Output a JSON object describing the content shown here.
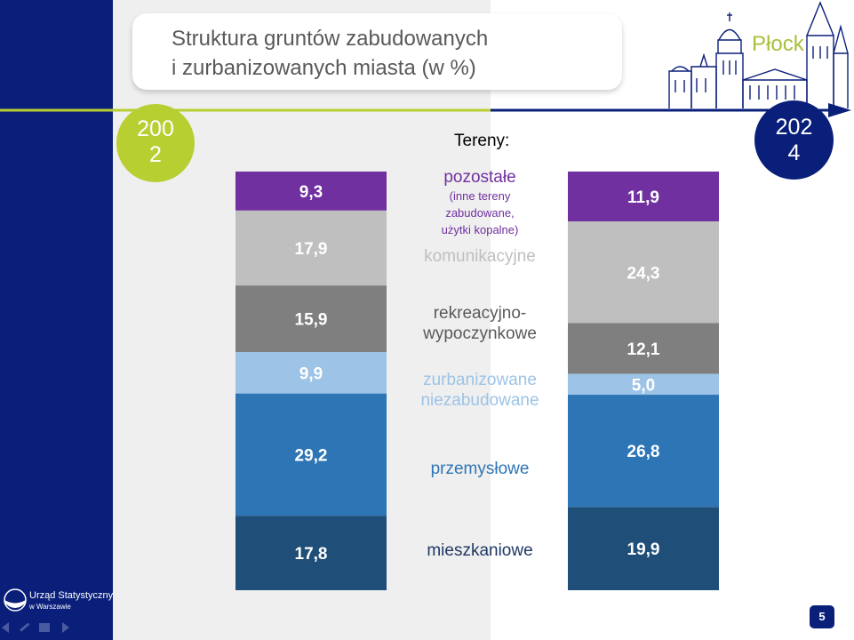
{
  "slide": {
    "title_line1": "Struktura gruntów zabudowanych",
    "title_line2": "i zurbanizowanych miasta (w %)",
    "city": "Płock",
    "year_left_a": "200",
    "year_left_b": "2",
    "year_right_a": "202",
    "year_right_b": "4",
    "legend_heading": "Tereny:",
    "page_number": "5",
    "logo_line1": "Urząd Statystyczny",
    "logo_line2": "w Warszawie"
  },
  "chart_data": {
    "type": "bar",
    "stacked": true,
    "categories": [
      "2002",
      "2024"
    ],
    "series": [
      {
        "name": "mieszkaniowe",
        "values": [
          17.8,
          19.9
        ],
        "labels": [
          "17,8",
          "19,9"
        ],
        "color": "#1f4e79",
        "label_color": "#1f3864"
      },
      {
        "name": "przemysłowe",
        "values": [
          29.2,
          26.8
        ],
        "labels": [
          "29,2",
          "26,8"
        ],
        "color": "#2e75b6",
        "label_color": "#2e75b6"
      },
      {
        "name": "zurbanizowane niezabudowane",
        "values": [
          9.9,
          5.0
        ],
        "labels": [
          "9,9",
          "5,0"
        ],
        "color": "#9dc3e6",
        "label_color": "#9dc3e6"
      },
      {
        "name": "rekreacyjno-wypoczynkowe",
        "values": [
          15.9,
          12.1
        ],
        "labels": [
          "15,9",
          "12,1"
        ],
        "color": "#7f7f7f",
        "label_color": "#595959"
      },
      {
        "name": "komunikacyjne",
        "values": [
          17.9,
          24.3
        ],
        "labels": [
          "17,9",
          "24,3"
        ],
        "color": "#bfbfbf",
        "label_color": "#bfbfbf"
      },
      {
        "name": "pozostałe",
        "values": [
          9.3,
          11.9
        ],
        "labels": [
          "9,3",
          "11,9"
        ],
        "color": "#7030a0",
        "label_color": "#7030a0"
      }
    ],
    "category_text": {
      "mieszkaniowe": [
        "mieszkaniowe"
      ],
      "przemysłowe": [
        "przemysłowe"
      ],
      "zurbanizowane niezabudowane": [
        "zurbanizowane",
        "niezabudowane"
      ],
      "rekreacyjno-wypoczynkowe": [
        "rekreacyjno-",
        "wypoczynkowe"
      ],
      "komunikacyjne": [
        "komunikacyjne"
      ],
      "pozostałe": [
        "pozostałe"
      ]
    },
    "pozostale_note": [
      "(inne tereny",
      "zabudowane,",
      "użytki kopalne)"
    ],
    "ylim": [
      0,
      100
    ]
  }
}
